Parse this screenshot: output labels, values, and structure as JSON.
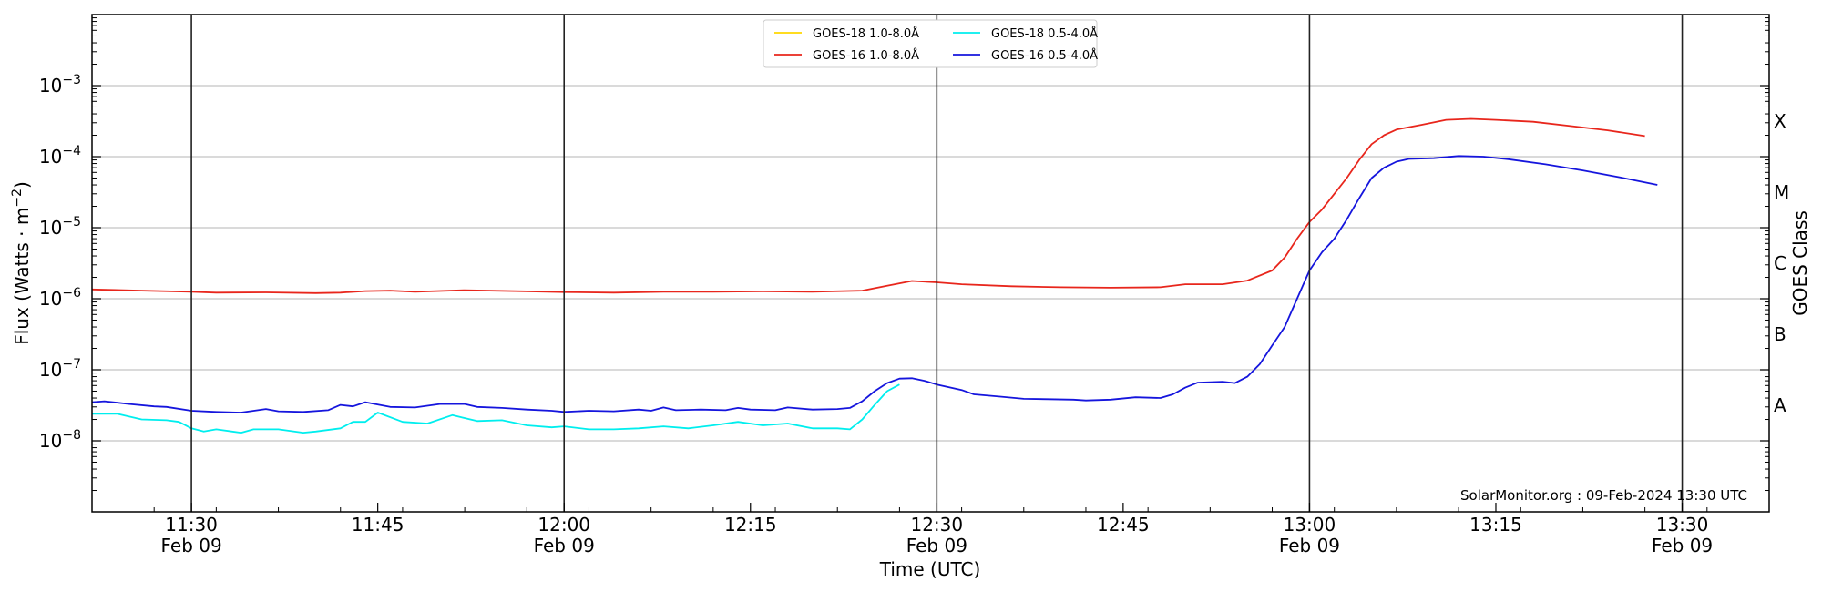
{
  "chart_data": {
    "type": "line",
    "xlabel": "Time (UTC)",
    "ylabel": "Flux (Watts · m",
    "ylabel_sup": "−2",
    "ylabel_close": ")",
    "right_label": "GOES Class",
    "credit": "SolarMonitor.org : 09-Feb-2024 13:30 UTC",
    "xlim": [
      "11:22",
      "13:37"
    ],
    "ylim": [
      1e-09,
      0.01
    ],
    "yscale": "log",
    "grid": "horizontal",
    "legend_position": "top-center",
    "y_ticks": [
      {
        "value": 1e-08,
        "base": "10",
        "exp": "−8"
      },
      {
        "value": 1e-07,
        "base": "10",
        "exp": "−7"
      },
      {
        "value": 1e-06,
        "base": "10",
        "exp": "−6"
      },
      {
        "value": 1e-05,
        "base": "10",
        "exp": "−5"
      },
      {
        "value": 0.0001,
        "base": "10",
        "exp": "−4"
      },
      {
        "value": 0.001,
        "base": "10",
        "exp": "−3"
      }
    ],
    "x_ticks": [
      {
        "time": "11:30",
        "date": "Feb 09",
        "major": true
      },
      {
        "time": "11:45",
        "date": "",
        "major": false
      },
      {
        "time": "12:00",
        "date": "Feb 09",
        "major": true
      },
      {
        "time": "12:15",
        "date": "",
        "major": false
      },
      {
        "time": "12:30",
        "date": "Feb 09",
        "major": true
      },
      {
        "time": "12:45",
        "date": "",
        "major": false
      },
      {
        "time": "13:00",
        "date": "Feb 09",
        "major": true
      },
      {
        "time": "13:15",
        "date": "",
        "major": false
      },
      {
        "time": "13:30",
        "date": "Feb 09",
        "major": true
      }
    ],
    "goes_classes": [
      {
        "label": "A",
        "value": 3.16e-08
      },
      {
        "label": "B",
        "value": 3.16e-07
      },
      {
        "label": "C",
        "value": 3.16e-06
      },
      {
        "label": "M",
        "value": 3.16e-05
      },
      {
        "label": "X",
        "value": 0.000316
      }
    ],
    "series": [
      {
        "name": "GOES-18 1.0-8.0Å",
        "color": "#ffd700",
        "points": []
      },
      {
        "name": "GOES-16 1.0-8.0Å",
        "color": "#e8261c",
        "points": [
          [
            "11:22",
            1.35e-06
          ],
          [
            "11:26",
            1.3e-06
          ],
          [
            "11:30",
            1.25e-06
          ],
          [
            "11:32",
            1.22e-06
          ],
          [
            "11:36",
            1.23e-06
          ],
          [
            "11:40",
            1.2e-06
          ],
          [
            "11:42",
            1.22e-06
          ],
          [
            "11:44",
            1.28e-06
          ],
          [
            "11:46",
            1.3e-06
          ],
          [
            "11:48",
            1.25e-06
          ],
          [
            "11:52",
            1.32e-06
          ],
          [
            "11:56",
            1.28e-06
          ],
          [
            "12:00",
            1.24e-06
          ],
          [
            "12:04",
            1.22e-06
          ],
          [
            "12:08",
            1.25e-06
          ],
          [
            "12:12",
            1.25e-06
          ],
          [
            "12:16",
            1.27e-06
          ],
          [
            "12:20",
            1.25e-06
          ],
          [
            "12:24",
            1.3e-06
          ],
          [
            "12:26",
            1.52e-06
          ],
          [
            "12:28",
            1.78e-06
          ],
          [
            "12:30",
            1.7e-06
          ],
          [
            "12:32",
            1.6e-06
          ],
          [
            "12:36",
            1.5e-06
          ],
          [
            "12:40",
            1.45e-06
          ],
          [
            "12:44",
            1.43e-06
          ],
          [
            "12:48",
            1.45e-06
          ],
          [
            "12:50",
            1.6e-06
          ],
          [
            "12:53",
            1.6e-06
          ],
          [
            "12:55",
            1.8e-06
          ],
          [
            "12:57",
            2.5e-06
          ],
          [
            "12:58",
            3.8e-06
          ],
          [
            "12:59",
            7e-06
          ],
          [
            "13:00",
            1.2e-05
          ],
          [
            "13:01",
            1.8e-05
          ],
          [
            "13:02",
            3e-05
          ],
          [
            "13:03",
            5e-05
          ],
          [
            "13:04",
            9e-05
          ],
          [
            "13:05",
            0.00015
          ],
          [
            "13:06",
            0.0002
          ],
          [
            "13:07",
            0.00024
          ],
          [
            "13:09",
            0.00028
          ],
          [
            "13:11",
            0.00033
          ],
          [
            "13:13",
            0.00034
          ],
          [
            "13:15",
            0.00033
          ],
          [
            "13:18",
            0.00031
          ],
          [
            "13:21",
            0.00027
          ],
          [
            "13:24",
            0.000235
          ],
          [
            "13:27",
            0.000195
          ]
        ]
      },
      {
        "name": "GOES-18 0.5-4.0Å",
        "color": "#00eeee",
        "points": [
          [
            "11:22",
            2.4e-08
          ],
          [
            "11:24",
            2.4e-08
          ],
          [
            "11:26",
            2e-08
          ],
          [
            "11:28",
            1.95e-08
          ],
          [
            "11:29",
            1.85e-08
          ],
          [
            "11:30",
            1.5e-08
          ],
          [
            "11:31",
            1.35e-08
          ],
          [
            "11:32",
            1.45e-08
          ],
          [
            "11:34",
            1.3e-08
          ],
          [
            "11:35",
            1.45e-08
          ],
          [
            "11:37",
            1.45e-08
          ],
          [
            "11:39",
            1.3e-08
          ],
          [
            "11:40",
            1.35e-08
          ],
          [
            "11:42",
            1.5e-08
          ],
          [
            "11:43",
            1.85e-08
          ],
          [
            "11:44",
            1.85e-08
          ],
          [
            "11:45",
            2.5e-08
          ],
          [
            "11:47",
            1.85e-08
          ],
          [
            "11:49",
            1.75e-08
          ],
          [
            "11:51",
            2.3e-08
          ],
          [
            "11:53",
            1.9e-08
          ],
          [
            "11:55",
            1.95e-08
          ],
          [
            "11:57",
            1.65e-08
          ],
          [
            "11:59",
            1.55e-08
          ],
          [
            "12:00",
            1.6e-08
          ],
          [
            "12:02",
            1.45e-08
          ],
          [
            "12:04",
            1.45e-08
          ],
          [
            "12:06",
            1.5e-08
          ],
          [
            "12:08",
            1.6e-08
          ],
          [
            "12:10",
            1.5e-08
          ],
          [
            "12:12",
            1.65e-08
          ],
          [
            "12:14",
            1.85e-08
          ],
          [
            "12:16",
            1.65e-08
          ],
          [
            "12:18",
            1.75e-08
          ],
          [
            "12:20",
            1.5e-08
          ],
          [
            "12:22",
            1.5e-08
          ],
          [
            "12:23",
            1.45e-08
          ],
          [
            "12:24",
            2e-08
          ],
          [
            "12:25",
            3.2e-08
          ],
          [
            "12:26",
            5e-08
          ],
          [
            "12:27",
            6.2e-08
          ]
        ]
      },
      {
        "name": "GOES-16 0.5-4.0Å",
        "color": "#1515dd",
        "points": [
          [
            "11:22",
            3.5e-08
          ],
          [
            "11:23",
            3.6e-08
          ],
          [
            "11:25",
            3.3e-08
          ],
          [
            "11:27",
            3.05e-08
          ],
          [
            "11:28",
            3e-08
          ],
          [
            "11:30",
            2.65e-08
          ],
          [
            "11:32",
            2.55e-08
          ],
          [
            "11:34",
            2.5e-08
          ],
          [
            "11:36",
            2.8e-08
          ],
          [
            "11:37",
            2.6e-08
          ],
          [
            "11:39",
            2.55e-08
          ],
          [
            "11:41",
            2.7e-08
          ],
          [
            "11:42",
            3.2e-08
          ],
          [
            "11:43",
            3.05e-08
          ],
          [
            "11:44",
            3.5e-08
          ],
          [
            "11:46",
            3e-08
          ],
          [
            "11:48",
            2.95e-08
          ],
          [
            "11:50",
            3.3e-08
          ],
          [
            "11:52",
            3.3e-08
          ],
          [
            "11:53",
            3e-08
          ],
          [
            "11:55",
            2.9e-08
          ],
          [
            "11:57",
            2.75e-08
          ],
          [
            "11:59",
            2.65e-08
          ],
          [
            "12:00",
            2.55e-08
          ],
          [
            "12:02",
            2.65e-08
          ],
          [
            "12:04",
            2.6e-08
          ],
          [
            "12:06",
            2.75e-08
          ],
          [
            "12:07",
            2.65e-08
          ],
          [
            "12:08",
            2.95e-08
          ],
          [
            "12:09",
            2.7e-08
          ],
          [
            "12:11",
            2.75e-08
          ],
          [
            "12:13",
            2.7e-08
          ],
          [
            "12:14",
            2.9e-08
          ],
          [
            "12:15",
            2.75e-08
          ],
          [
            "12:17",
            2.7e-08
          ],
          [
            "12:18",
            2.95e-08
          ],
          [
            "12:20",
            2.75e-08
          ],
          [
            "12:22",
            2.8e-08
          ],
          [
            "12:23",
            2.9e-08
          ],
          [
            "12:24",
            3.6e-08
          ],
          [
            "12:25",
            5e-08
          ],
          [
            "12:26",
            6.5e-08
          ],
          [
            "12:27",
            7.5e-08
          ],
          [
            "12:28",
            7.6e-08
          ],
          [
            "12:29",
            7e-08
          ],
          [
            "12:30",
            6.2e-08
          ],
          [
            "12:32",
            5.2e-08
          ],
          [
            "12:33",
            4.5e-08
          ],
          [
            "12:35",
            4.2e-08
          ],
          [
            "12:37",
            3.9e-08
          ],
          [
            "12:39",
            3.85e-08
          ],
          [
            "12:41",
            3.8e-08
          ],
          [
            "12:42",
            3.7e-08
          ],
          [
            "12:44",
            3.8e-08
          ],
          [
            "12:46",
            4.1e-08
          ],
          [
            "12:48",
            4e-08
          ],
          [
            "12:49",
            4.5e-08
          ],
          [
            "12:50",
            5.6e-08
          ],
          [
            "12:51",
            6.6e-08
          ],
          [
            "12:53",
            6.8e-08
          ],
          [
            "12:54",
            6.5e-08
          ],
          [
            "12:55",
            8e-08
          ],
          [
            "12:56",
            1.2e-07
          ],
          [
            "12:57",
            2.2e-07
          ],
          [
            "12:58",
            4e-07
          ],
          [
            "12:59",
            1e-06
          ],
          [
            "13:00",
            2.5e-06
          ],
          [
            "13:01",
            4.5e-06
          ],
          [
            "13:02",
            7e-06
          ],
          [
            "13:03",
            1.3e-05
          ],
          [
            "13:04",
            2.6e-05
          ],
          [
            "13:05",
            5e-05
          ],
          [
            "13:06",
            7e-05
          ],
          [
            "13:07",
            8.5e-05
          ],
          [
            "13:08",
            9.3e-05
          ],
          [
            "13:10",
            9.5e-05
          ],
          [
            "13:12",
            0.000102
          ],
          [
            "13:14",
            0.0001
          ],
          [
            "13:16",
            9.2e-05
          ],
          [
            "13:19",
            7.8e-05
          ],
          [
            "13:22",
            6.4e-05
          ],
          [
            "13:25",
            5.1e-05
          ],
          [
            "13:28",
            4e-05
          ]
        ]
      }
    ]
  }
}
